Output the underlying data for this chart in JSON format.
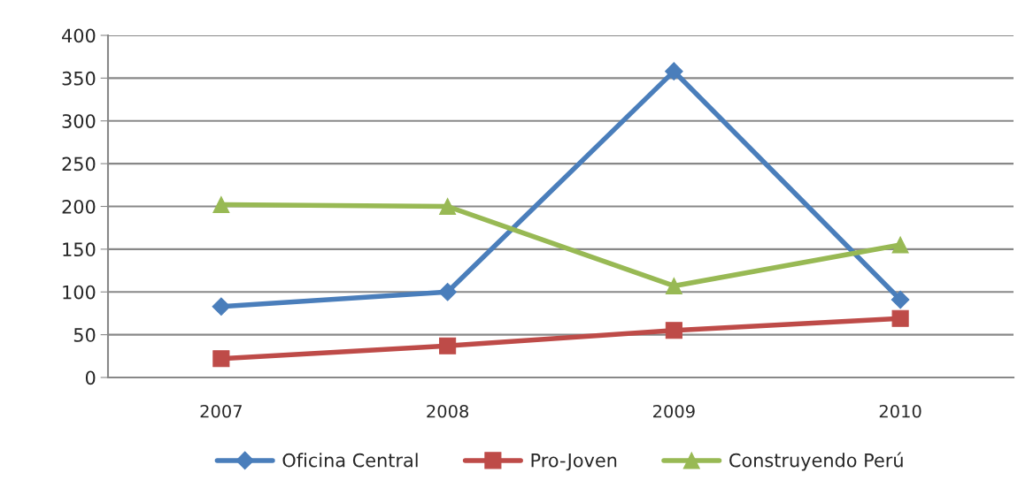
{
  "chart_data": {
    "type": "line",
    "categories": [
      "2007",
      "2008",
      "2009",
      "2010"
    ],
    "series": [
      {
        "name": "Oficina Central",
        "color": "#4a7ebb",
        "marker": "diamond",
        "values": [
          83,
          100,
          358,
          91
        ]
      },
      {
        "name": "Pro-Joven",
        "color": "#be4b48",
        "marker": "square",
        "values": [
          22,
          37,
          55,
          69
        ]
      },
      {
        "name": "Construyendo Perú",
        "color": "#98b954",
        "marker": "triangle",
        "values": [
          202,
          200,
          107,
          155
        ]
      }
    ],
    "ylim": [
      0,
      400
    ],
    "yticks": [
      0,
      50,
      100,
      150,
      200,
      250,
      300,
      350,
      400
    ],
    "grid": "y",
    "legend": "bottom",
    "line_style": "solid"
  }
}
